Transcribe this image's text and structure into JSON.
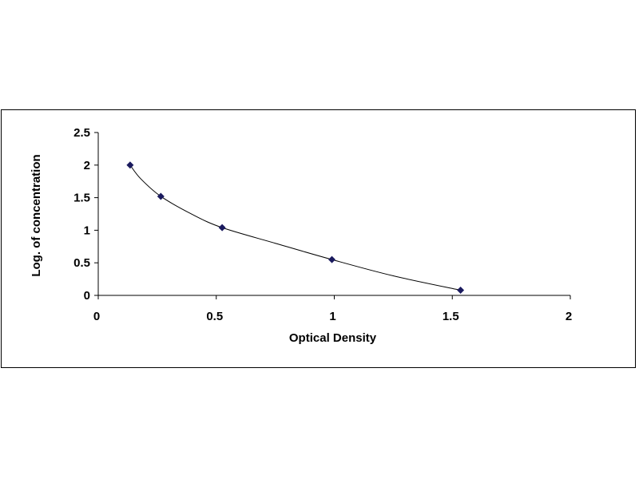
{
  "chart_data": {
    "type": "scatter",
    "title": "",
    "xlabel": "Optical Density",
    "ylabel": "Log. of concentration",
    "xlim": [
      0,
      2
    ],
    "ylim": [
      0,
      2.5
    ],
    "x_ticks": [
      "0",
      "0.5",
      "1",
      "1.5",
      "2"
    ],
    "y_ticks": [
      "0",
      "0.5",
      "1",
      "1.5",
      "2",
      "2.5"
    ],
    "grid": false,
    "legend": "none",
    "marker": "diamond",
    "marker_color": "#1a1a5e",
    "line_color": "#000000",
    "series": [
      {
        "x": [
          0.135,
          0.265,
          0.525,
          0.99,
          1.535
        ],
        "y": [
          2.0,
          1.52,
          1.04,
          0.55,
          0.08
        ]
      }
    ],
    "curve": {
      "style": "smooth fit through points",
      "x": [
        0.135,
        0.18,
        0.265,
        0.4,
        0.525,
        0.75,
        0.99,
        1.25,
        1.535
      ],
      "y": [
        2.0,
        1.79,
        1.52,
        1.24,
        1.04,
        0.8,
        0.55,
        0.3,
        0.08
      ]
    }
  }
}
